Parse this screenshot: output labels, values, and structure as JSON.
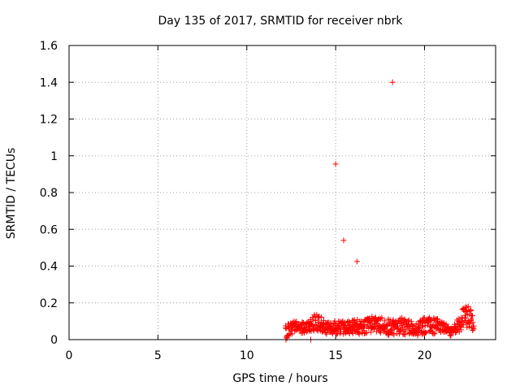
{
  "chart_data": {
    "type": "scatter",
    "title": "Day 135 of 2017, SRMTID for receiver nbrk",
    "xlabel": "GPS time / hours",
    "ylabel": "SRMTID / TECUs",
    "xlim": [
      0,
      24
    ],
    "ylim": [
      0,
      1.6
    ],
    "xticks": [
      0,
      5,
      10,
      15,
      20
    ],
    "xtick_labels": [
      "0",
      "5",
      "10",
      "15",
      "20"
    ],
    "yticks": [
      0,
      0.2,
      0.4,
      0.6,
      0.8,
      1.0,
      1.2,
      1.4,
      1.6
    ],
    "ytick_labels": [
      "0",
      "0.2",
      "0.4",
      "0.6",
      "0.8",
      "1",
      "1.2",
      "1.4",
      "1.6"
    ],
    "grid": true,
    "marker": "+",
    "marker_color": "#ff0000",
    "outliers": [
      {
        "x": 15.0,
        "y": 0.955
      },
      {
        "x": 15.45,
        "y": 0.54
      },
      {
        "x": 16.2,
        "y": 0.425
      },
      {
        "x": 18.2,
        "y": 1.4
      }
    ],
    "baseline": {
      "x_start": 12.2,
      "x_end": 22.8,
      "step_hours": 0.05,
      "envelope": [
        {
          "x": 12.2,
          "lo": 0.0,
          "hi": 0.08
        },
        {
          "x": 12.6,
          "lo": 0.03,
          "hi": 0.1
        },
        {
          "x": 13.5,
          "lo": 0.04,
          "hi": 0.1
        },
        {
          "x": 13.9,
          "lo": 0.05,
          "hi": 0.15
        },
        {
          "x": 14.5,
          "lo": 0.03,
          "hi": 0.1
        },
        {
          "x": 15.5,
          "lo": 0.03,
          "hi": 0.11
        },
        {
          "x": 16.5,
          "lo": 0.03,
          "hi": 0.11
        },
        {
          "x": 17.2,
          "lo": 0.04,
          "hi": 0.13
        },
        {
          "x": 18.0,
          "lo": 0.02,
          "hi": 0.11
        },
        {
          "x": 18.5,
          "lo": 0.03,
          "hi": 0.13
        },
        {
          "x": 19.5,
          "lo": 0.02,
          "hi": 0.09
        },
        {
          "x": 20.0,
          "lo": 0.03,
          "hi": 0.12
        },
        {
          "x": 20.8,
          "lo": 0.03,
          "hi": 0.12
        },
        {
          "x": 21.5,
          "lo": 0.02,
          "hi": 0.06
        },
        {
          "x": 22.1,
          "lo": 0.05,
          "hi": 0.16
        },
        {
          "x": 22.4,
          "lo": 0.06,
          "hi": 0.2
        },
        {
          "x": 22.8,
          "lo": 0.04,
          "hi": 0.13
        }
      ],
      "zero_points": [
        12.2,
        13.6
      ]
    }
  }
}
